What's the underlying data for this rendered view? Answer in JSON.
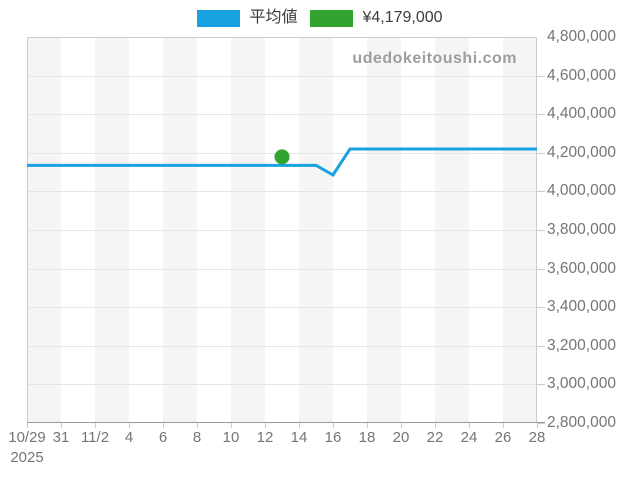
{
  "watermark": "udedokeitoushi.com",
  "legend": {
    "items": [
      {
        "name": "average",
        "label": "平均値",
        "swatch_color": "#18a2e2"
      },
      {
        "name": "current-price",
        "label": "¥4,179,000",
        "swatch_color": "#31a32f"
      }
    ]
  },
  "chart_data": {
    "type": "line",
    "title": "",
    "xlabel": "",
    "ylabel": "",
    "grid": true,
    "legend_position": "top-center",
    "x_axis": {
      "year_label": "2025",
      "tick_labels": [
        "10/29",
        "31",
        "11/2",
        "4",
        "6",
        "8",
        "10",
        "12",
        "14",
        "16",
        "18",
        "20",
        "22",
        "24",
        "26",
        "28"
      ],
      "tick_step_days": 2,
      "total_days": 30
    },
    "y_axis": {
      "min": 2800000,
      "max": 4800000,
      "tick_step": 200000,
      "tick_labels_top_to_bottom": [
        "4,800,000",
        "4,600,000",
        "4,400,000",
        "4,200,000",
        "4,000,000",
        "3,800,000",
        "3,600,000",
        "3,400,000",
        "3,200,000",
        "3,000,000",
        "2,800,000"
      ]
    },
    "series": [
      {
        "name": "平均値",
        "color": "#18a2e2",
        "points": [
          {
            "date": "10/29",
            "day": 0,
            "value": 4135000
          },
          {
            "date": "11/15",
            "day": 17,
            "value": 4135000
          },
          {
            "date": "11/16",
            "day": 18,
            "value": 4085000
          },
          {
            "date": "11/17",
            "day": 19,
            "value": 4220000
          },
          {
            "date": "11/28",
            "day": 30,
            "value": 4220000
          }
        ]
      }
    ],
    "marker_point": {
      "label": "¥4,179,000",
      "color": "#31a32f",
      "date": "11/13",
      "day": 15,
      "value": 4179000
    },
    "background_stripes": {
      "colors": [
        "#f5f5f5",
        "#ffffff"
      ],
      "per_tick_interval": true
    }
  },
  "colors": {
    "line_blue": "#18a2e2",
    "marker_green": "#31a32f",
    "axis_text": "#757575",
    "legend_text": "#3c3c3c",
    "watermark_text": "#9e9e9e",
    "gridline": "#e5e5e5",
    "plot_border": "#cccccc",
    "axis_line": "#9a9a9a",
    "stripe_gray": "#f5f5f5"
  }
}
